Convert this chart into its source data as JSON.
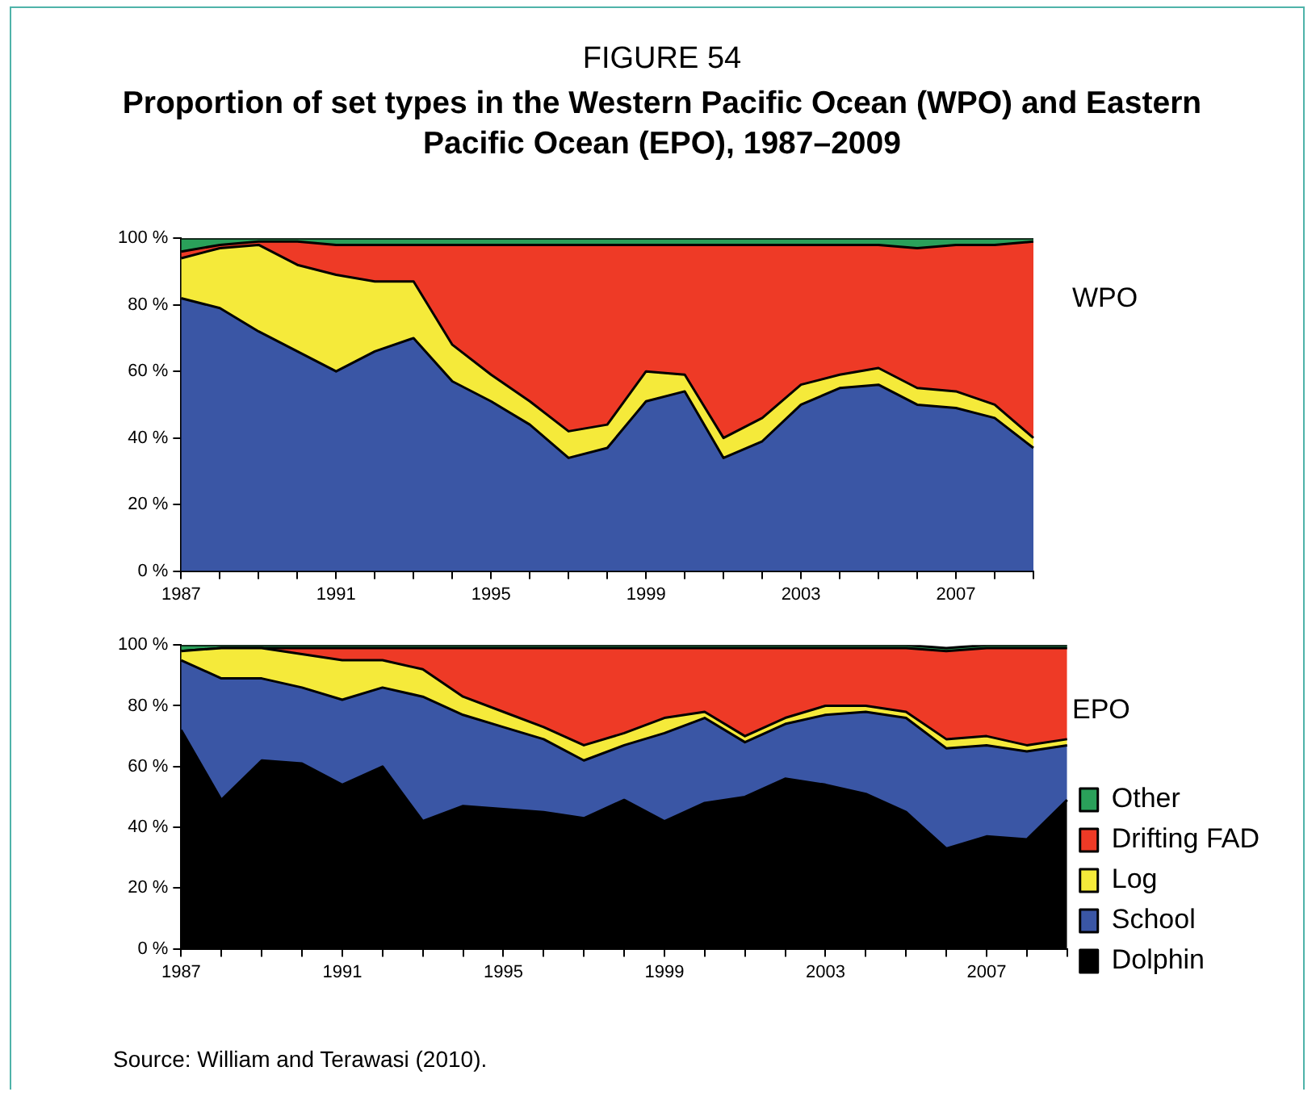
{
  "chart_data": [
    {
      "type": "area",
      "title": "FIGURE 54",
      "subtitle": "Proportion of set types in the Western Pacific Ocean (WPO) and Eastern Pacific Ocean (EPO), 1987–2009",
      "stacked": true,
      "grid": false,
      "legend": false,
      "categories": [
        "1987",
        null,
        null,
        null,
        "1991",
        null,
        null,
        null,
        "1995",
        null,
        null,
        null,
        "1999",
        null,
        null,
        null,
        "2003",
        null,
        null,
        null,
        "2007",
        null,
        null
      ],
      "ylim": [
        0,
        100
      ],
      "yticks": [
        {
          "value": 0,
          "label": "0 %"
        },
        {
          "value": 20,
          "label": "20 %"
        },
        {
          "value": 40,
          "label": "40 %"
        },
        {
          "value": 60,
          "label": "60 %"
        },
        {
          "value": 80,
          "label": "80 %"
        },
        {
          "value": 100,
          "label": "100 %"
        }
      ],
      "annotations": [
        "WPO"
      ],
      "series": [
        {
          "color": "#3a56a5",
          "values": [
            82,
            79,
            72,
            66,
            60,
            66,
            70,
            57,
            51,
            44,
            34,
            37,
            51,
            54,
            34,
            39,
            50,
            55,
            56,
            50,
            49,
            46,
            37
          ]
        },
        {
          "color": "#f5ea3a",
          "values": [
            12,
            18,
            26,
            26,
            29,
            21,
            17,
            11,
            8,
            7,
            8,
            7,
            9,
            5,
            6,
            7,
            6,
            4,
            5,
            5,
            5,
            4,
            3
          ]
        },
        {
          "color": "#ee3a26",
          "values": [
            2,
            1,
            1,
            7,
            9,
            11,
            11,
            30,
            39,
            47,
            56,
            54,
            38,
            39,
            58,
            52,
            42,
            39,
            37,
            42,
            44,
            48,
            59
          ]
        },
        {
          "color": "#2aa05a",
          "values": [
            4,
            2,
            1,
            1,
            2,
            2,
            2,
            2,
            2,
            2,
            2,
            2,
            2,
            2,
            2,
            2,
            2,
            2,
            2,
            3,
            2,
            2,
            1
          ]
        }
      ]
    },
    {
      "type": "area",
      "stacked": true,
      "grid": false,
      "legend": "right",
      "categories": [
        "1987",
        null,
        null,
        null,
        "1991",
        null,
        null,
        null,
        "1995",
        null,
        null,
        null,
        "1999",
        null,
        null,
        null,
        "2003",
        null,
        null,
        null,
        "2007",
        null,
        null
      ],
      "ylim": [
        0,
        100
      ],
      "yticks": [
        {
          "value": 0,
          "label": "0 %"
        },
        {
          "value": 20,
          "label": "20 %"
        },
        {
          "value": 40,
          "label": "40 %"
        },
        {
          "value": 60,
          "label": "60 %"
        },
        {
          "value": 80,
          "label": "80 %"
        },
        {
          "value": 100,
          "label": "100 %"
        }
      ],
      "annotations": [
        "EPO",
        "Source: William and Terawasi (2010)."
      ],
      "series": [
        {
          "name": "Dolphin",
          "color": "#000000",
          "values": [
            72,
            49,
            62,
            61,
            54,
            60,
            42,
            47,
            46,
            45,
            43,
            49,
            42,
            48,
            50,
            56,
            54,
            51,
            45,
            33,
            37,
            36,
            49
          ]
        },
        {
          "name": "School",
          "color": "#3a56a5",
          "values": [
            23,
            40,
            27,
            25,
            28,
            26,
            41,
            30,
            27,
            24,
            19,
            18,
            29,
            28,
            18,
            18,
            23,
            27,
            31,
            33,
            30,
            29,
            18
          ]
        },
        {
          "name": "Log",
          "color": "#f5ea3a",
          "values": [
            3,
            10,
            10,
            11,
            13,
            9,
            9,
            6,
            5,
            4,
            5,
            4,
            5,
            2,
            2,
            2,
            3,
            2,
            2,
            3,
            3,
            2,
            2
          ]
        },
        {
          "name": "Drifting FAD",
          "color": "#ee3a26",
          "values": [
            0,
            0,
            0,
            2,
            4,
            4,
            7,
            16,
            21,
            26,
            32,
            28,
            23,
            21,
            29,
            23,
            19,
            19,
            21,
            29,
            29,
            32,
            30
          ]
        },
        {
          "name": "Other",
          "color": "#2aa05a",
          "values": [
            2,
            1,
            1,
            1,
            1,
            1,
            1,
            1,
            1,
            1,
            1,
            1,
            1,
            1,
            1,
            1,
            1,
            1,
            1,
            1,
            1,
            1,
            1
          ]
        }
      ]
    }
  ]
}
